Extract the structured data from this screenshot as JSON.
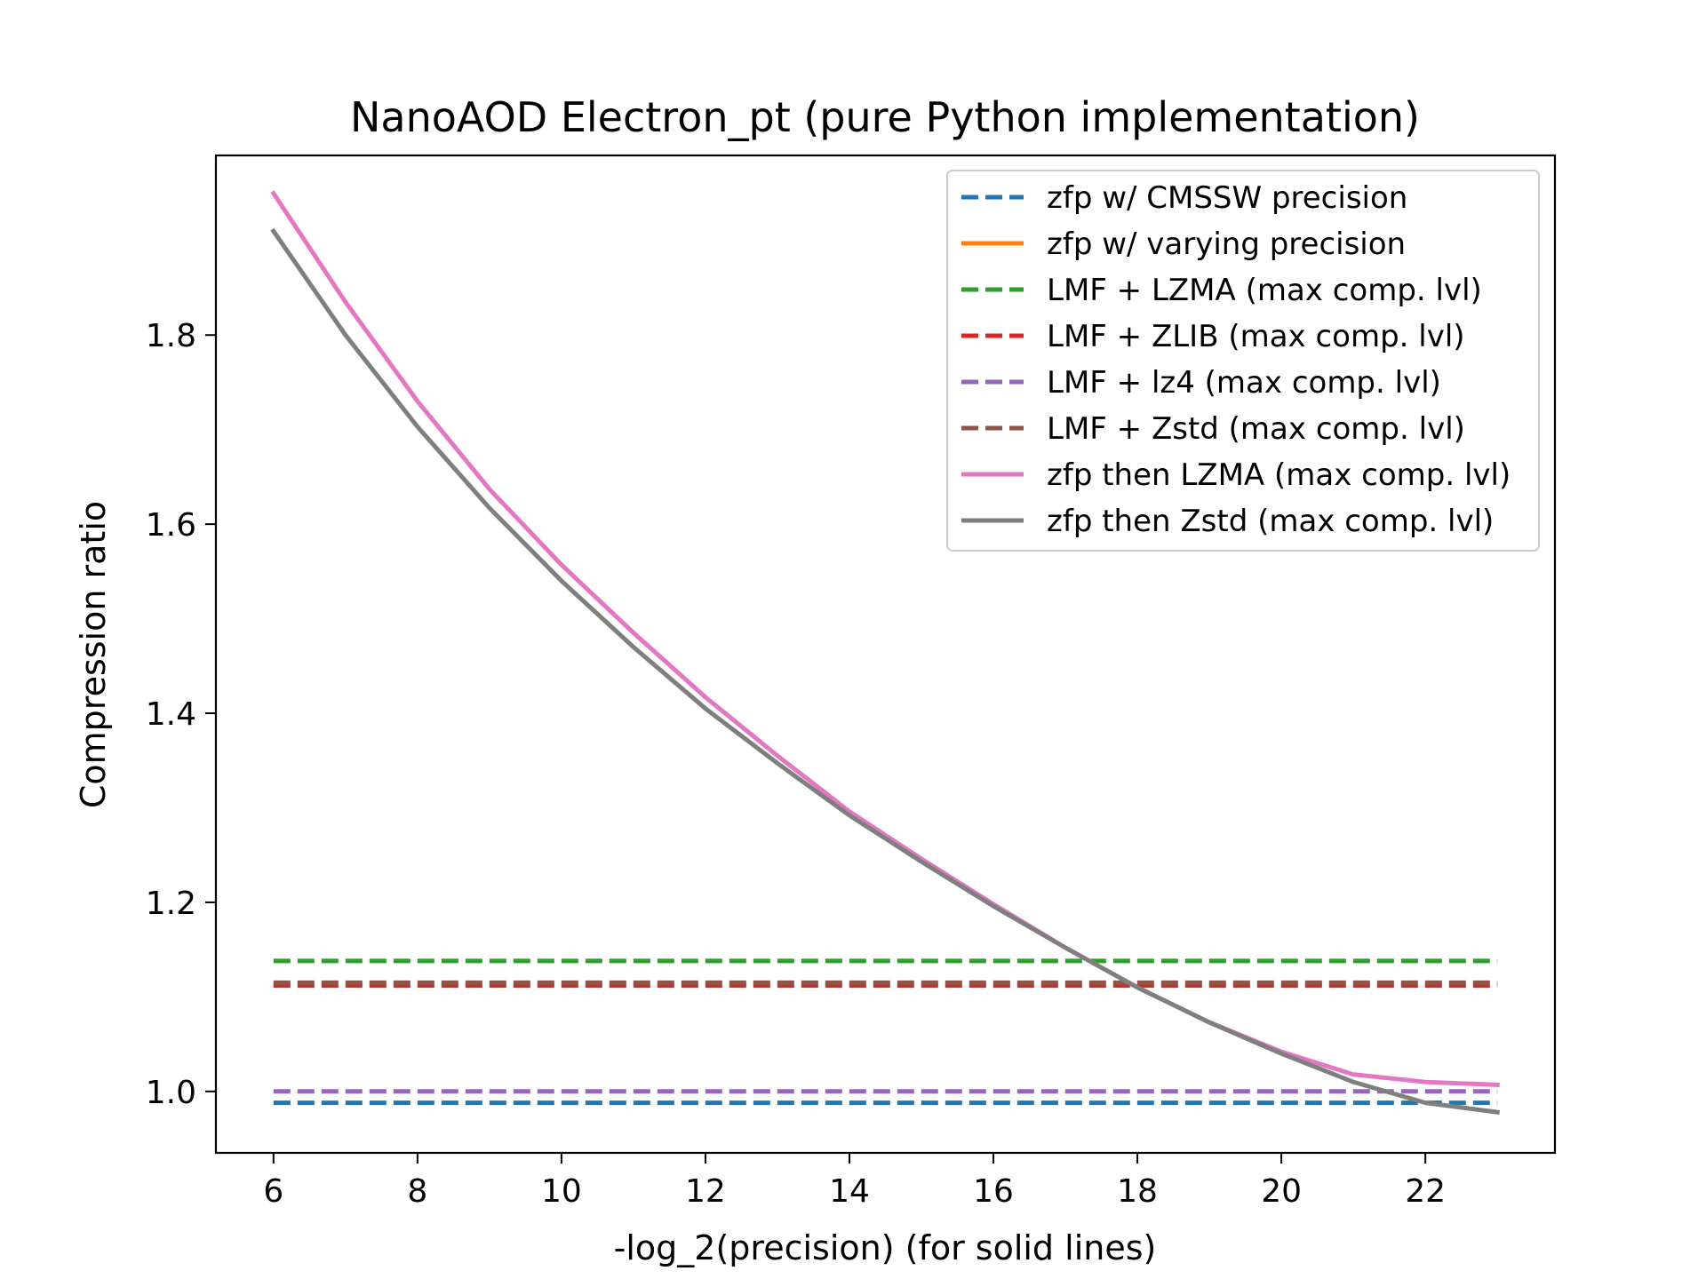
{
  "chart_data": {
    "type": "line",
    "title": "NanoAOD Electron_pt (pure Python implementation)",
    "xlabel": "-log_2(precision) (for solid lines)",
    "ylabel": "Compression ratio",
    "xlim": [
      5.2,
      23.8
    ],
    "ylim": [
      0.935,
      1.99
    ],
    "xticks": [
      6,
      8,
      10,
      12,
      14,
      16,
      18,
      20,
      22
    ],
    "xtick_labels": [
      "6",
      "8",
      "10",
      "12",
      "14",
      "16",
      "18",
      "20",
      "22"
    ],
    "yticks": [
      1.0,
      1.2,
      1.4,
      1.6,
      1.8
    ],
    "ytick_labels": [
      "1.0",
      "1.2",
      "1.4",
      "1.6",
      "1.8"
    ],
    "grid": false,
    "legend_position": "top-right",
    "series": [
      {
        "name": "zfp w/ CMSSW precision",
        "color": "#1f77b4",
        "style": "dashed",
        "x": [
          6,
          23
        ],
        "y": [
          0.988,
          0.988
        ]
      },
      {
        "name": "zfp w/ varying precision",
        "color": "#ff7f0e",
        "style": "solid",
        "x": [],
        "y": []
      },
      {
        "name": "LMF + LZMA (max comp. lvl)",
        "color": "#2ca02c",
        "style": "dashed",
        "x": [
          6,
          23
        ],
        "y": [
          1.138,
          1.138
        ]
      },
      {
        "name": "LMF + ZLIB (max comp. lvl)",
        "color": "#d62728",
        "style": "dashed",
        "x": [
          6,
          23
        ],
        "y": [
          1.112,
          1.112
        ]
      },
      {
        "name": "LMF + lz4 (max comp. lvl)",
        "color": "#9467bd",
        "style": "dashed",
        "x": [
          6,
          23
        ],
        "y": [
          1.0,
          1.0
        ]
      },
      {
        "name": "LMF + Zstd (max comp. lvl)",
        "color": "#8c564b",
        "style": "dashed",
        "x": [
          6,
          23
        ],
        "y": [
          1.115,
          1.115
        ]
      },
      {
        "name": "zfp then LZMA (max comp. lvl)",
        "color": "#e377c2",
        "style": "solid",
        "x": [
          6,
          7,
          8,
          9,
          10,
          11,
          12,
          13,
          14,
          15,
          16,
          17,
          18,
          19,
          20,
          21,
          22,
          23
        ],
        "y": [
          1.95,
          1.835,
          1.73,
          1.637,
          1.557,
          1.485,
          1.417,
          1.355,
          1.296,
          1.246,
          1.198,
          1.152,
          1.11,
          1.073,
          1.042,
          1.018,
          1.01,
          1.007
        ]
      },
      {
        "name": "zfp then Zstd (max comp. lvl)",
        "color": "#7f7f7f",
        "style": "solid",
        "x": [
          6,
          7,
          8,
          9,
          10,
          11,
          12,
          13,
          14,
          15,
          16,
          17,
          18,
          19,
          20,
          21,
          22,
          23
        ],
        "y": [
          1.91,
          1.8,
          1.703,
          1.617,
          1.54,
          1.47,
          1.405,
          1.347,
          1.292,
          1.243,
          1.196,
          1.152,
          1.11,
          1.073,
          1.04,
          1.01,
          0.988,
          0.978
        ]
      }
    ]
  }
}
